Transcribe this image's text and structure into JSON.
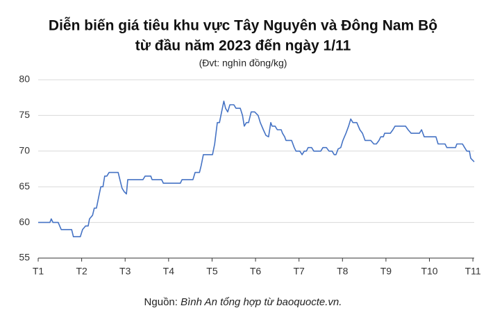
{
  "chart_data": {
    "type": "line",
    "title": [
      "Diễn biến giá tiêu khu vực Tây Nguyên và Đông Nam Bộ",
      "từ đầu năm 2023 đến ngày 1/11"
    ],
    "subtitle": "(Đvt: nghìn đồng/kg)",
    "source": {
      "prefix": "Nguồn:",
      "text": "Bình An tổng hợp từ baoquocte.vn."
    },
    "x": [
      1.0,
      1.27,
      1.3,
      1.34,
      1.46,
      1.53,
      1.77,
      1.81,
      1.97,
      2.02,
      2.09,
      2.15,
      2.18,
      2.25,
      2.29,
      2.34,
      2.39,
      2.44,
      2.49,
      2.53,
      2.58,
      2.63,
      2.84,
      2.88,
      2.93,
      2.98,
      3.03,
      3.06,
      3.41,
      3.46,
      3.59,
      3.62,
      3.84,
      3.88,
      4.27,
      4.31,
      4.56,
      4.61,
      4.71,
      4.75,
      4.8,
      5.01,
      5.06,
      5.12,
      5.17,
      5.22,
      5.27,
      5.31,
      5.36,
      5.41,
      5.5,
      5.55,
      5.65,
      5.7,
      5.74,
      5.79,
      5.84,
      5.9,
      5.98,
      6.06,
      6.11,
      6.18,
      6.24,
      6.3,
      6.35,
      6.38,
      6.45,
      6.5,
      6.59,
      6.62,
      6.67,
      6.7,
      6.83,
      6.89,
      6.93,
      7.02,
      7.07,
      7.12,
      7.17,
      7.21,
      7.29,
      7.34,
      7.5,
      7.55,
      7.63,
      7.69,
      7.76,
      7.81,
      7.85,
      7.9,
      7.96,
      8.01,
      8.08,
      8.14,
      8.19,
      8.24,
      8.33,
      8.4,
      8.46,
      8.52,
      8.65,
      8.72,
      8.78,
      8.84,
      8.88,
      8.94,
      8.97,
      9.1,
      9.16,
      9.21,
      9.45,
      9.51,
      9.58,
      9.77,
      9.82,
      9.85,
      9.88,
      10.15,
      10.2,
      10.36,
      10.4,
      10.6,
      10.63,
      10.76,
      10.81,
      10.86,
      10.92,
      10.95,
      10.98,
      11.03
    ],
    "series": [
      {
        "color": "#4472c4",
        "values": [
          60,
          60,
          60.5,
          60,
          60,
          59,
          59,
          58,
          58,
          59,
          59.5,
          59.5,
          60.5,
          61,
          62,
          62,
          63.5,
          65,
          65,
          66.5,
          66.5,
          67,
          67,
          66,
          64.8,
          64.3,
          64,
          66,
          66,
          66.5,
          66.5,
          66,
          66,
          65.5,
          65.5,
          66,
          66,
          67,
          67,
          68,
          69.5,
          69.5,
          71,
          74,
          74,
          75.5,
          77,
          76,
          75.5,
          76.5,
          76.5,
          76,
          76,
          75,
          73.5,
          74,
          74,
          75.5,
          75.5,
          75,
          74,
          73,
          72.2,
          72,
          74,
          73.5,
          73.5,
          73,
          73,
          72.5,
          72,
          71.5,
          71.5,
          70.5,
          70,
          70,
          69.5,
          70,
          70,
          70.5,
          70.5,
          70,
          70,
          70.5,
          70.5,
          70,
          70,
          69.5,
          69.5,
          70.3,
          70.5,
          71.5,
          72.5,
          73.5,
          74.5,
          74,
          74,
          73,
          72.5,
          71.5,
          71.5,
          71,
          71,
          71.5,
          72,
          72,
          72.5,
          72.5,
          73,
          73.5,
          73.5,
          73,
          72.5,
          72.5,
          73,
          72.5,
          72,
          72,
          71,
          71,
          70.5,
          70.5,
          71,
          71,
          70.5,
          70,
          70,
          69,
          68.8,
          68.5
        ]
      }
    ],
    "xlim": [
      1,
      11.03
    ],
    "xticks": [
      {
        "value": 1,
        "label": "T1"
      },
      {
        "value": 2,
        "label": "T2"
      },
      {
        "value": 3,
        "label": "T3"
      },
      {
        "value": 4,
        "label": "T4"
      },
      {
        "value": 5,
        "label": "T5"
      },
      {
        "value": 6,
        "label": "T6"
      },
      {
        "value": 7,
        "label": "T7"
      },
      {
        "value": 8,
        "label": "T8"
      },
      {
        "value": 9,
        "label": "T9"
      },
      {
        "value": 10,
        "label": "T10"
      },
      {
        "value": 11,
        "label": "T11"
      }
    ],
    "ylim": [
      55,
      80
    ],
    "yticks": [
      55,
      60,
      65,
      70,
      75,
      80
    ],
    "grid": true
  }
}
